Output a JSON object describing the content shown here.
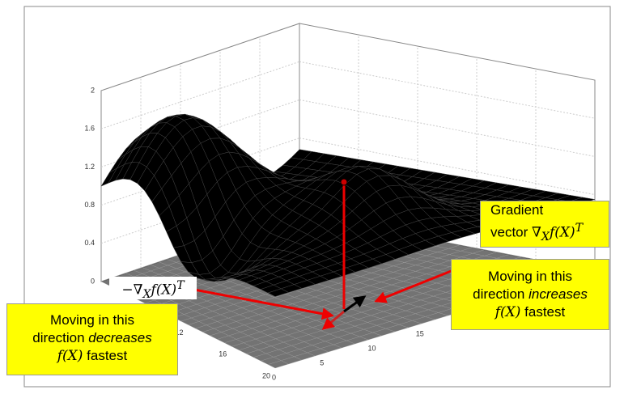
{
  "z_axis": {
    "ticks": [
      "0",
      "0.4",
      "0.8",
      "1.2",
      "1.6",
      "2"
    ]
  },
  "x_axis": {
    "ticks": [
      "12",
      "16",
      "20"
    ]
  },
  "y_axis": {
    "ticks": [
      "0",
      "5",
      "10",
      "15",
      "20"
    ]
  },
  "annotations": {
    "gradient": {
      "line1": "Gradient",
      "line2": "vector",
      "symbol": "∇",
      "subscript": "X",
      "function": "f(X)",
      "superscript": "T"
    },
    "negative_gradient": {
      "sign": "−",
      "symbol": "∇",
      "subscript": "X",
      "function": "f(X)",
      "superscript": "T"
    },
    "increase": {
      "line1": "Moving in this",
      "line2": "direction",
      "emphasis": "increases",
      "function": "f(X)",
      "suffix": "fastest"
    },
    "decrease": {
      "line1": "Moving in this",
      "line2": "direction",
      "emphasis": "decreases",
      "function": "f(X)",
      "suffix": "fastest"
    }
  }
}
